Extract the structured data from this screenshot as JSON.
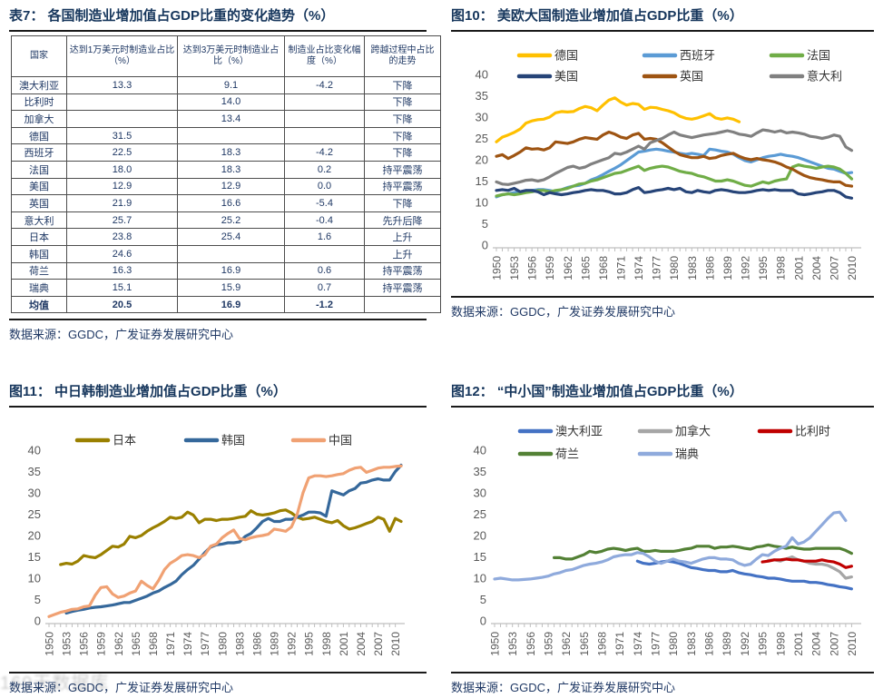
{
  "page": {
    "watermark": "169天数据库"
  },
  "table7": {
    "title": "表7：  各国制造业增加值占GDP比重的变化趋势（%）",
    "source": "数据来源：GGDC，广发证券发展研究中心",
    "columns": [
      "国家",
      "达到1万美元时制造业占比（%）",
      "达到3万美元时制造业占比（%）",
      "制造业占比变化幅度（%）",
      "跨越过程中占比的走势"
    ],
    "rows": [
      [
        "澳大利亚",
        "13.3",
        "9.1",
        "-4.2",
        "下降"
      ],
      [
        "比利时",
        "",
        "14.0",
        "",
        "下降"
      ],
      [
        "加拿大",
        "",
        "13.4",
        "",
        "下降"
      ],
      [
        "德国",
        "31.5",
        "",
        "",
        "下降"
      ],
      [
        "西班牙",
        "22.5",
        "18.3",
        "-4.2",
        "下降"
      ],
      [
        "法国",
        "18.0",
        "18.3",
        "0.2",
        "持平震荡"
      ],
      [
        "美国",
        "12.9",
        "12.9",
        "0.0",
        "持平震荡"
      ],
      [
        "英国",
        "21.9",
        "16.6",
        "-5.4",
        "下降"
      ],
      [
        "意大利",
        "25.7",
        "25.2",
        "-0.4",
        "先升后降"
      ],
      [
        "日本",
        "23.8",
        "25.4",
        "1.6",
        "上升"
      ],
      [
        "韩国",
        "24.6",
        "",
        "",
        "上升"
      ],
      [
        "荷兰",
        "16.3",
        "16.9",
        "0.6",
        "持平震荡"
      ],
      [
        "瑞典",
        "15.1",
        "15.9",
        "0.7",
        "持平震荡"
      ],
      [
        "均值",
        "20.5",
        "16.9",
        "-1.2",
        ""
      ]
    ]
  },
  "chart_data": [
    {
      "type": "line",
      "title": "图10：  美欧大国制造业增加值占GDP比重（%）",
      "source": "数据来源：GGDC，广发证券发展研究中心",
      "xlabel": "",
      "ylabel": "",
      "ylim": [
        0,
        40
      ],
      "ytick_step": 5,
      "x_range": [
        1950,
        2011
      ],
      "x_tick_labels": [
        "1950",
        "1953",
        "1956",
        "1959",
        "1962",
        "1965",
        "1968",
        "1971",
        "1974",
        "1977",
        "1980",
        "1983",
        "1986",
        "1989",
        "1992",
        "1995",
        "1998",
        "2001",
        "2004",
        "2007",
        "2010"
      ],
      "grid": false,
      "legend_position": "top",
      "series": [
        {
          "name": "德国",
          "color": "#FFC000",
          "start_year": 1950,
          "values": [
            24.2,
            25.3,
            25.8,
            26.4,
            27.2,
            28.6,
            29.1,
            29.4,
            29.5,
            30.0,
            31.0,
            31.3,
            31.2,
            31.3,
            32.0,
            32.5,
            32.2,
            31.5,
            32.8,
            34.0,
            34.5,
            33.5,
            32.8,
            33.2,
            33.0,
            31.8,
            32.3,
            32.2,
            31.8,
            31.5,
            31.0,
            30.2,
            29.7,
            29.5,
            29.8,
            30.3,
            30.8,
            29.8,
            29.5,
            29.8,
            29.5,
            28.9
          ]
        },
        {
          "name": "西班牙",
          "color": "#5B9BD5",
          "start_year": 1950,
          "values": [
            11.3,
            11.8,
            12.0,
            12.3,
            12.5,
            12.8,
            12.8,
            13.0,
            13.0,
            12.8,
            12.5,
            13.0,
            13.5,
            13.8,
            14.0,
            14.5,
            15.3,
            15.8,
            16.5,
            17.3,
            18.0,
            18.8,
            19.8,
            20.8,
            21.8,
            22.0,
            22.3,
            22.5,
            22.3,
            22.0,
            21.8,
            21.5,
            21.3,
            21.5,
            21.3,
            21.0,
            22.5,
            22.3,
            22.0,
            21.8,
            21.3,
            20.5,
            19.8,
            19.5,
            20.0,
            20.5,
            20.8,
            21.0,
            21.3,
            21.0,
            20.8,
            20.5,
            20.0,
            19.5,
            19.0,
            18.5,
            18.0,
            17.8,
            17.3,
            16.8,
            17.0
          ]
        },
        {
          "name": "法国",
          "color": "#70AD47",
          "start_year": 1950,
          "values": [
            11.5,
            11.8,
            12.0,
            11.8,
            12.0,
            12.3,
            12.5,
            12.8,
            12.8,
            12.5,
            12.8,
            13.0,
            13.3,
            13.8,
            14.3,
            14.5,
            15.0,
            15.3,
            15.8,
            16.3,
            16.8,
            17.0,
            17.5,
            18.0,
            18.5,
            17.5,
            18.0,
            18.3,
            18.5,
            18.3,
            17.8,
            17.3,
            17.0,
            16.8,
            16.3,
            16.0,
            15.5,
            15.0,
            15.0,
            15.3,
            15.0,
            14.5,
            14.0,
            13.8,
            14.3,
            14.8,
            14.5,
            15.0,
            15.3,
            15.5,
            18.3,
            18.8,
            18.5,
            18.3,
            18.0,
            18.3,
            18.5,
            18.3,
            17.8,
            16.8,
            15.5
          ]
        },
        {
          "name": "美国",
          "color": "#264478",
          "start_year": 1950,
          "values": [
            12.8,
            13.0,
            12.8,
            13.3,
            12.5,
            12.8,
            12.8,
            12.5,
            11.8,
            12.3,
            12.0,
            11.8,
            12.0,
            12.3,
            12.5,
            12.8,
            13.0,
            12.8,
            12.8,
            12.5,
            12.0,
            12.0,
            12.3,
            13.0,
            13.5,
            12.3,
            12.5,
            12.8,
            13.0,
            13.3,
            13.0,
            13.3,
            12.5,
            12.3,
            12.8,
            12.5,
            12.3,
            12.8,
            13.0,
            12.8,
            12.5,
            12.3,
            12.3,
            12.5,
            12.8,
            13.0,
            12.8,
            13.0,
            12.8,
            12.8,
            12.8,
            12.0,
            11.8,
            12.0,
            12.3,
            12.5,
            12.8,
            12.8,
            12.3,
            11.3,
            11.0
          ]
        },
        {
          "name": "英国",
          "color": "#9E5412",
          "start_year": 1950,
          "values": [
            20.8,
            21.2,
            20.3,
            21.0,
            21.8,
            22.8,
            22.5,
            22.6,
            22.3,
            22.8,
            24.2,
            24.0,
            23.8,
            24.2,
            24.8,
            25.2,
            25.0,
            24.8,
            25.8,
            26.5,
            26.0,
            25.3,
            25.0,
            25.8,
            26.2,
            24.8,
            25.0,
            24.8,
            24.0,
            23.0,
            22.0,
            21.2,
            20.8,
            20.5,
            20.5,
            20.8,
            20.3,
            20.5,
            21.0,
            21.3,
            21.5,
            20.8,
            20.3,
            20.0,
            20.3,
            20.0,
            19.8,
            19.5,
            19.0,
            18.3,
            17.8,
            17.0,
            16.3,
            15.8,
            15.5,
            15.3,
            15.0,
            14.8,
            14.8,
            14.0,
            13.8
          ]
        },
        {
          "name": "意大利",
          "color": "#808080",
          "start_year": 1950,
          "values": [
            14.8,
            14.3,
            14.2,
            14.5,
            14.8,
            15.2,
            15.3,
            15.0,
            15.3,
            16.0,
            16.8,
            17.5,
            18.2,
            18.5,
            18.0,
            18.3,
            19.0,
            19.5,
            20.0,
            20.5,
            21.5,
            21.3,
            21.8,
            22.5,
            23.2,
            22.5,
            24.0,
            24.5,
            25.0,
            25.8,
            26.5,
            25.8,
            25.5,
            25.2,
            25.5,
            25.8,
            26.0,
            26.2,
            26.5,
            26.8,
            26.5,
            26.0,
            25.8,
            25.5,
            26.3,
            27.0,
            26.8,
            26.5,
            26.8,
            26.3,
            26.5,
            26.3,
            26.0,
            25.5,
            25.3,
            25.0,
            25.3,
            25.8,
            25.5,
            23.0,
            22.2
          ]
        }
      ]
    },
    {
      "type": "line",
      "title": "图11：  中日韩制造业增加值占GDP比重（%）",
      "source": "数据来源：GGDC，广发证券发展研究中心",
      "xlabel": "",
      "ylabel": "",
      "ylim": [
        0,
        40
      ],
      "ytick_step": 5,
      "x_range": [
        1950,
        2011
      ],
      "x_tick_labels": [
        "1950",
        "1953",
        "1956",
        "1959",
        "1962",
        "1965",
        "1968",
        "1971",
        "1974",
        "1977",
        "1980",
        "1983",
        "1986",
        "1989",
        "1992",
        "1995",
        "1998",
        "2001",
        "2004",
        "2007",
        "2010"
      ],
      "grid": false,
      "legend_position": "top",
      "series": [
        {
          "name": "日本",
          "color": "#9A8000",
          "start_year": 1952,
          "values": [
            13.2,
            13.5,
            13.3,
            14.0,
            15.3,
            15.0,
            14.8,
            15.5,
            16.5,
            17.5,
            17.3,
            18.0,
            19.8,
            19.5,
            20.0,
            21.0,
            21.8,
            22.5,
            23.3,
            24.3,
            24.0,
            24.3,
            25.5,
            24.8,
            23.0,
            23.8,
            23.8,
            23.5,
            23.8,
            23.8,
            24.0,
            24.3,
            24.5,
            25.8,
            25.0,
            24.8,
            25.0,
            25.3,
            25.8,
            26.0,
            25.3,
            24.3,
            23.8,
            24.0,
            24.3,
            23.8,
            23.3,
            23.0,
            23.5,
            22.3,
            21.5,
            21.8,
            22.3,
            22.8,
            23.3,
            24.3,
            23.8,
            21.0,
            24.0,
            23.3
          ]
        },
        {
          "name": "韩国",
          "color": "#35689B",
          "start_year": 1953,
          "values": [
            1.8,
            2.2,
            2.5,
            2.7,
            3.0,
            3.2,
            3.3,
            3.5,
            3.7,
            4.0,
            4.3,
            4.3,
            4.8,
            5.3,
            5.8,
            6.5,
            7.0,
            7.8,
            8.5,
            9.3,
            10.8,
            12.0,
            13.0,
            14.5,
            16.0,
            17.3,
            17.8,
            18.0,
            18.3,
            18.3,
            18.5,
            19.8,
            20.5,
            21.8,
            23.3,
            24.0,
            23.3,
            23.3,
            23.8,
            23.8,
            24.3,
            24.8,
            25.5,
            25.5,
            25.3,
            24.5,
            30.5,
            30.0,
            29.5,
            30.5,
            31.0,
            32.3,
            32.5,
            33.0,
            33.3,
            33.0,
            33.0,
            35.0,
            36.5
          ]
        },
        {
          "name": "中国",
          "color": "#F0A173",
          "start_year": 1950,
          "values": [
            1.0,
            1.5,
            2.0,
            2.3,
            2.7,
            2.8,
            3.3,
            3.5,
            6.0,
            7.8,
            8.0,
            6.3,
            5.5,
            5.8,
            6.5,
            7.0,
            9.3,
            8.3,
            7.5,
            9.5,
            12.0,
            13.5,
            14.3,
            15.3,
            15.5,
            15.3,
            14.8,
            15.5,
            17.5,
            18.0,
            19.5,
            20.5,
            21.3,
            19.3,
            19.0,
            19.5,
            19.8,
            20.0,
            20.3,
            21.5,
            21.3,
            21.0,
            22.0,
            25.0,
            30.0,
            33.5,
            34.0,
            34.0,
            33.8,
            34.0,
            34.3,
            34.5,
            35.3,
            35.8,
            36.0,
            34.8,
            35.3,
            35.8,
            36.0,
            36.0,
            36.2,
            36.3
          ]
        }
      ]
    },
    {
      "type": "line",
      "title": "图12：  “中小国”制造业增加值占GDP比重（%）",
      "source": "数据来源：GGDC，广发证券发展研究中心",
      "xlabel": "",
      "ylabel": "",
      "ylim": [
        0,
        40
      ],
      "ytick_step": 5,
      "x_range": [
        1950,
        2011
      ],
      "x_tick_labels": [
        "1950",
        "1953",
        "1956",
        "1959",
        "1962",
        "1965",
        "1968",
        "1971",
        "1974",
        "1977",
        "1980",
        "1983",
        "1986",
        "1989",
        "1992",
        "1995",
        "1998",
        "2001",
        "2004",
        "2007",
        "2010"
      ],
      "grid": false,
      "legend_position": "top",
      "series": [
        {
          "name": "澳大利亚",
          "color": "#4472C4",
          "start_year": 1974,
          "values": [
            14.0,
            13.5,
            13.3,
            13.5,
            13.8,
            14.0,
            13.8,
            13.5,
            13.0,
            12.5,
            12.3,
            12.0,
            11.8,
            11.8,
            11.5,
            11.5,
            11.8,
            11.3,
            11.0,
            10.8,
            10.5,
            10.3,
            10.0,
            10.0,
            9.8,
            9.5,
            9.3,
            9.3,
            9.3,
            9.0,
            9.0,
            8.8,
            8.5,
            8.3,
            8.0,
            7.8,
            7.5
          ]
        },
        {
          "name": "加拿大",
          "color": "#A6A6A6",
          "start_year": 1996,
          "values": [
            14.2,
            14.3,
            14.0,
            14.5,
            15.0,
            14.3,
            14.0,
            13.5,
            13.3,
            13.3,
            13.0,
            12.3,
            11.5,
            10.0,
            10.3
          ]
        },
        {
          "name": "比利时",
          "color": "#C00000",
          "start_year": 1995,
          "values": [
            13.8,
            14.0,
            14.3,
            14.3,
            14.5,
            14.3,
            14.3,
            14.0,
            14.0,
            14.0,
            14.3,
            14.0,
            13.8,
            13.3,
            12.5,
            12.8
          ]
        },
        {
          "name": "荷兰",
          "color": "#538135",
          "start_year": 1960,
          "values": [
            14.8,
            14.8,
            14.5,
            14.5,
            15.0,
            15.5,
            16.3,
            16.0,
            16.3,
            16.8,
            17.0,
            16.8,
            16.5,
            16.8,
            17.0,
            16.3,
            16.3,
            16.5,
            16.3,
            16.3,
            16.3,
            16.5,
            16.8,
            17.0,
            17.5,
            17.5,
            17.5,
            17.0,
            17.3,
            17.3,
            17.5,
            17.3,
            17.0,
            16.8,
            17.3,
            17.5,
            17.8,
            17.5,
            17.3,
            17.0,
            17.3,
            17.0,
            16.8,
            16.8,
            17.0,
            17.0,
            17.0,
            17.0,
            17.0,
            16.5,
            15.8
          ]
        },
        {
          "name": "瑞典",
          "color": "#8FAADC",
          "start_year": 1950,
          "values": [
            9.8,
            10.0,
            9.8,
            9.6,
            9.6,
            9.7,
            9.8,
            10.0,
            10.2,
            10.5,
            11.0,
            11.3,
            11.8,
            12.0,
            12.5,
            13.0,
            13.3,
            13.5,
            13.8,
            14.3,
            15.0,
            15.3,
            15.5,
            15.5,
            16.0,
            15.8,
            15.0,
            14.0,
            13.5,
            14.0,
            14.5,
            14.0,
            13.8,
            13.5,
            14.0,
            14.5,
            14.8,
            14.8,
            14.5,
            14.5,
            14.3,
            13.5,
            13.0,
            13.3,
            14.5,
            15.5,
            15.3,
            16.3,
            17.0,
            17.5,
            19.5,
            18.0,
            18.5,
            19.5,
            21.0,
            22.5,
            24.0,
            25.3,
            25.5,
            23.5
          ]
        }
      ]
    }
  ]
}
